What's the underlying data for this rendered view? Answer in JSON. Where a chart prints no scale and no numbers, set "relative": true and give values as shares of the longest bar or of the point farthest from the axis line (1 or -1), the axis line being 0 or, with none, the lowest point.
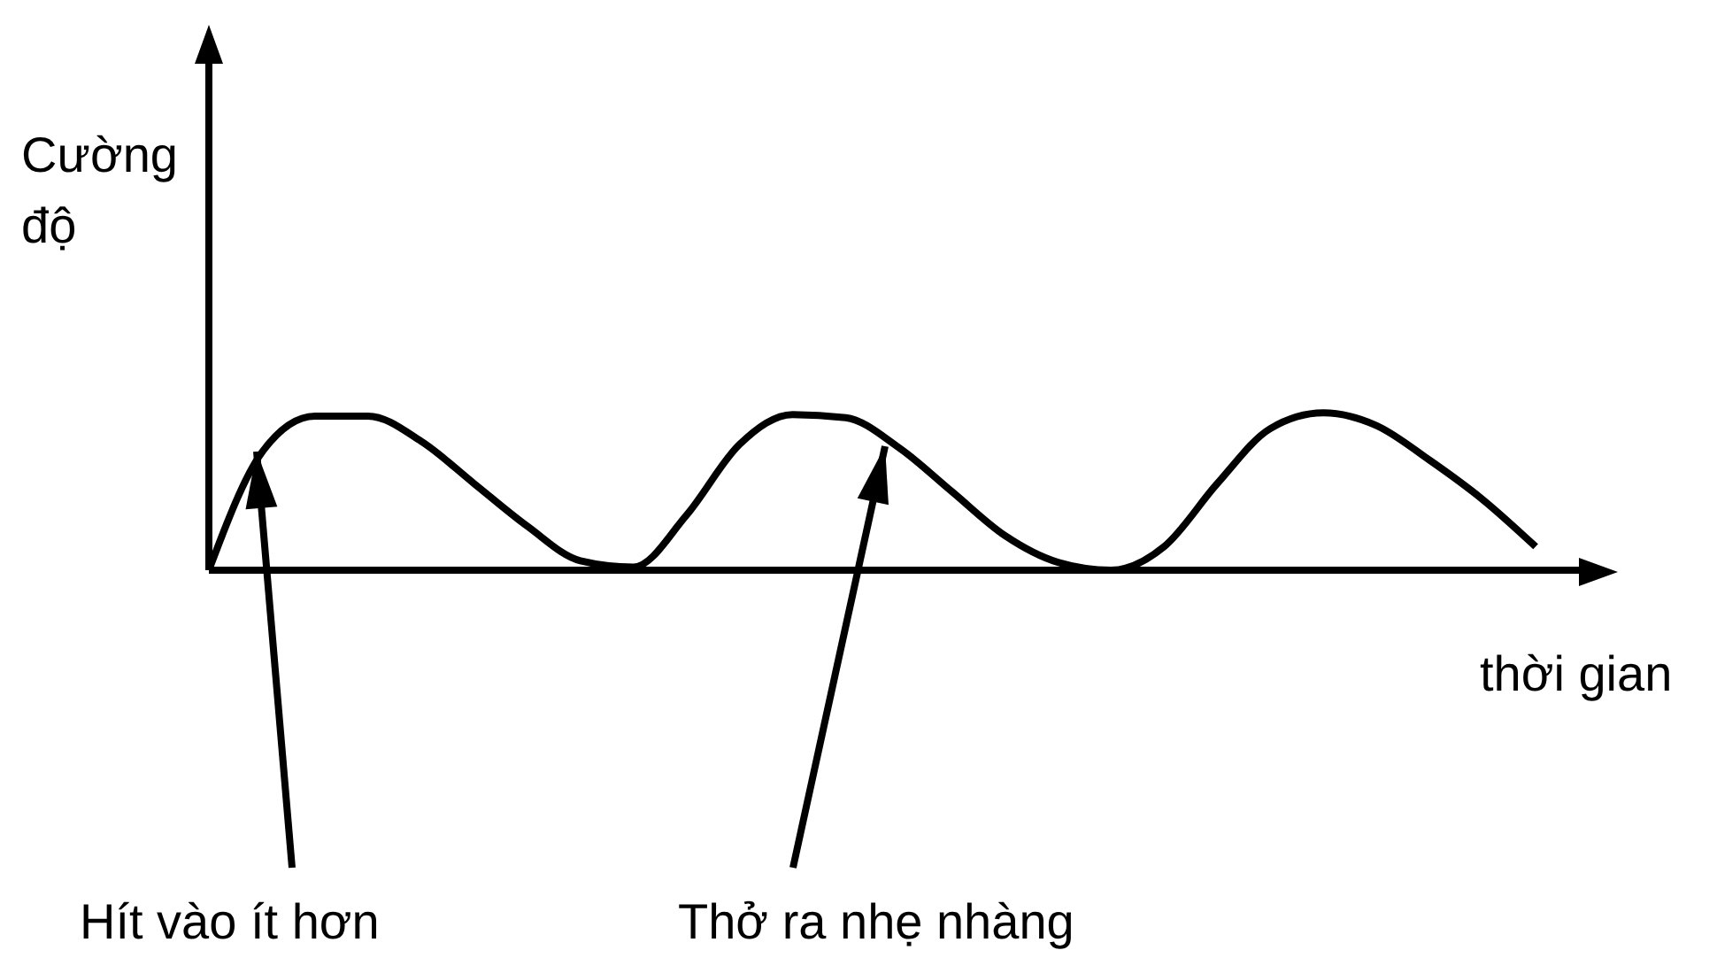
{
  "chart_data": {
    "type": "line",
    "relative": true,
    "xlabel": "thời gian",
    "ylabel": "Cường độ",
    "categories": [
      null,
      null,
      null,
      null,
      null,
      null,
      null,
      null,
      null,
      null,
      null,
      null,
      null,
      null,
      null,
      null,
      null,
      null,
      null,
      null,
      null,
      null,
      null,
      null,
      null,
      null
    ],
    "series": [
      {
        "color": "#000000",
        "values": [
          0,
          0.75,
          0.98,
          0.98,
          0.82,
          0.55,
          0.28,
          0.06,
          0.02,
          0.35,
          0.8,
          0.99,
          0.97,
          0.78,
          0.5,
          0.22,
          0.05,
          0,
          0.15,
          0.55,
          0.9,
          1,
          0.92,
          0.7,
          0.45,
          0.15
        ]
      }
    ],
    "annotations": [
      "Hít vào ít hơn",
      "Thở ra nhẹ nhàng"
    ],
    "grid": false,
    "legend": false,
    "marker": "none",
    "line_style": "solid"
  }
}
